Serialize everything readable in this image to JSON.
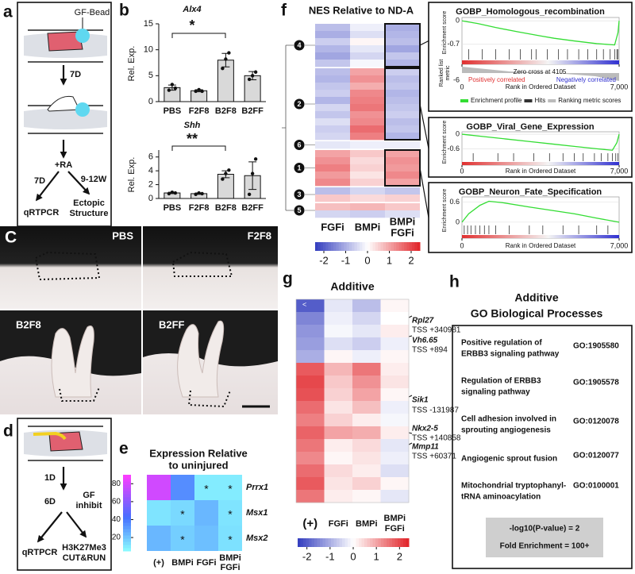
{
  "panel_a": {
    "label": "a",
    "bead": "GF-Bead",
    "first_interval": "7D",
    "treatment": "+RA",
    "left_interval": "7D",
    "right_interval": "9-12W",
    "left_readout": "qRTPCR",
    "right_readout_lines": [
      "Ectopic",
      "Structure"
    ]
  },
  "panel_b": {
    "label": "b",
    "charts": [
      {
        "type": "bar",
        "title": "Alx4",
        "y_label": "Rel. Exp.",
        "categories": [
          "PBS",
          "F2F8",
          "B2F8",
          "B2FF"
        ],
        "values": [
          2.7,
          2.1,
          8.0,
          5.0
        ],
        "errors": [
          0.5,
          0.2,
          1.3,
          0.8
        ],
        "points": [
          [
            2.2,
            3.3,
            2.6
          ],
          [
            2.0,
            2.3,
            2.0
          ],
          [
            6.4,
            8.2,
            9.4
          ],
          [
            4.3,
            5.0,
            5.7
          ]
        ],
        "color": "#d9d9d9",
        "ylim": [
          0,
          15
        ],
        "yticks": [
          0,
          5,
          10,
          15
        ],
        "significance": "*"
      },
      {
        "type": "bar",
        "title": "Shh",
        "y_label": "Rel. Exp.",
        "categories": [
          "PBS",
          "F2F8",
          "B2F8",
          "B2FF"
        ],
        "values": [
          0.8,
          0.7,
          3.5,
          3.3
        ],
        "errors": [
          0.1,
          0.1,
          0.5,
          2.0
        ],
        "points": [
          [
            0.7,
            0.9,
            0.8
          ],
          [
            0.6,
            0.8,
            0.7
          ],
          [
            2.8,
            3.6,
            4.1
          ],
          [
            0.6,
            3.6,
            5.7
          ]
        ],
        "color": "#d9d9d9",
        "ylim": [
          0,
          7
        ],
        "yticks": [
          0,
          2,
          4,
          6
        ],
        "significance": "**"
      }
    ]
  },
  "panel_c": {
    "label": "C",
    "photos": [
      "PBS",
      "F2F8",
      "B2F8",
      "B2FF"
    ]
  },
  "panel_d": {
    "label": "d",
    "first_interval": "1D",
    "second_interval": "6D",
    "treatment_lines": [
      "GF",
      "inhibit"
    ],
    "left_readout": "qRTPCR",
    "right_readout_lines": [
      "H3K27Me3",
      "CUT&RUN"
    ]
  },
  "panel_e": {
    "label": "e",
    "title_lines": [
      "Expression Relative",
      "to uninjured"
    ],
    "rows": [
      "Prrx1",
      "Msx1",
      "Msx2"
    ],
    "columns": [
      [
        "(+)"
      ],
      [
        "BMPi"
      ],
      [
        "FGFi"
      ],
      [
        "BMPi",
        "FGFi"
      ]
    ],
    "values": [
      [
        78,
        35,
        10,
        10
      ],
      [
        12,
        15,
        24,
        12
      ],
      [
        24,
        18,
        22,
        13
      ]
    ],
    "colorbar_lim": [
      5,
      90
    ],
    "colorbar_ticks": [
      20,
      40,
      60,
      80
    ],
    "significance_mark": "*",
    "significant_cells": [
      [
        0,
        2
      ],
      [
        0,
        3
      ],
      [
        1,
        1
      ],
      [
        1,
        3
      ],
      [
        2,
        1
      ],
      [
        2,
        3
      ]
    ]
  },
  "panel_f": {
    "label": "f",
    "title": "NES Relative to ND-A",
    "columns": [
      [
        "FGFi"
      ],
      [
        "BMPi"
      ],
      [
        "BMPi",
        "FGFi"
      ]
    ],
    "clusters": [
      {
        "label": "4",
        "boxed": true,
        "rows": [
          [
            -0.8,
            -0.2,
            -1.0
          ],
          [
            -1.0,
            -0.4,
            -0.9
          ],
          [
            -0.6,
            0.1,
            -0.8
          ],
          [
            -0.9,
            -0.3,
            -1.1
          ],
          [
            -1.1,
            -0.5,
            -0.7
          ],
          [
            -0.7,
            -0.1,
            -0.9
          ]
        ]
      },
      {
        "label": "2",
        "boxed": true,
        "rows": [
          [
            -0.8,
            1.0,
            -0.6
          ],
          [
            -0.9,
            1.2,
            -0.8
          ],
          [
            -0.7,
            0.9,
            -0.7
          ],
          [
            -0.6,
            1.3,
            -0.9
          ],
          [
            -0.9,
            1.4,
            -0.8
          ],
          [
            -0.5,
            1.5,
            -0.7
          ],
          [
            -0.7,
            1.2,
            -0.6
          ],
          [
            -0.4,
            1.3,
            -0.8
          ],
          [
            -0.6,
            1.6,
            -0.7
          ],
          [
            -0.5,
            1.4,
            -0.9
          ]
        ]
      },
      {
        "label": "6",
        "boxed": false,
        "rows": [
          [
            -0.3,
            -0.2,
            -0.2
          ]
        ]
      },
      {
        "label": "1",
        "boxed": true,
        "rows": [
          [
            1.0,
            0.6,
            1.0
          ],
          [
            1.2,
            0.4,
            1.2
          ],
          [
            1.4,
            0.5,
            1.1
          ],
          [
            1.1,
            0.3,
            1.3
          ],
          [
            1.3,
            0.5,
            1.0
          ]
        ]
      },
      {
        "label": "3",
        "boxed": false,
        "rows": [
          [
            -0.8,
            -0.5,
            -0.7
          ],
          [
            0.6,
            0.4,
            0.5
          ]
        ]
      },
      {
        "label": "5",
        "boxed": false,
        "rows": [
          [
            0.7,
            0.8,
            0.6
          ],
          [
            -0.5,
            -0.6,
            -0.4
          ]
        ]
      }
    ],
    "colorbar_lim": [
      -2.4,
      2.4
    ],
    "colorbar_ticks": [
      -2,
      -1,
      0,
      1,
      2
    ]
  },
  "gsea": [
    {
      "title": "GOBP_Homologous_recombination",
      "y_label": "Enrichment score",
      "x_label": "Rank in Ordered Dataset",
      "xlim": [
        0,
        7000
      ],
      "xticks": [
        0,
        {
          "value": 7000,
          "label": "7,000"
        }
      ],
      "ylim": [
        -0.8,
        0.1
      ],
      "yticks": [
        0,
        -0.7
      ],
      "color": "#33dd33",
      "x": [
        0,
        700,
        1500,
        2500,
        3500,
        4105,
        5000,
        6000,
        6800,
        6950,
        7000
      ],
      "values": [
        0,
        -0.08,
        -0.2,
        -0.33,
        -0.45,
        -0.52,
        -0.6,
        -0.68,
        -0.72,
        -0.35,
        0
      ],
      "hits": [
        300,
        900,
        1500,
        2100,
        2600,
        3100,
        3300,
        3800,
        4300,
        4700,
        5200,
        5600,
        6000,
        6300,
        6600,
        6800,
        6900,
        6950
      ],
      "metric_label_lines": [
        "Ranked list",
        "metric"
      ],
      "metric_yticks": [
        -6
      ],
      "zero_cross": "Zero cross at 4105",
      "positive_label": "Positively correlated",
      "negative_label": "Negatively correlated",
      "legend": [
        {
          "name": "Enrichment profile",
          "color": "#33dd33"
        },
        {
          "name": "Hits",
          "color": "#333333"
        },
        {
          "name": "Ranking metric scores",
          "color": "#bbbbbb"
        }
      ]
    },
    {
      "title": "GOBP_Viral_Gene_Expression",
      "y_label": "Enrichment score",
      "x_label": "Rank in Ordered Dataset",
      "xlim": [
        0,
        7000
      ],
      "xticks": [
        0,
        {
          "value": 7000,
          "label": "7,000"
        }
      ],
      "ylim": [
        -0.75,
        0.1
      ],
      "yticks": [
        0,
        -0.6
      ],
      "color": "#33dd33",
      "x": [
        0,
        1000,
        2000,
        3000,
        4000,
        5000,
        6000,
        6700,
        6900,
        7000
      ],
      "values": [
        0,
        -0.1,
        -0.2,
        -0.3,
        -0.4,
        -0.5,
        -0.6,
        -0.66,
        -0.35,
        0
      ],
      "hits": [
        500,
        1600,
        2300,
        3200,
        3900,
        4500,
        5000,
        5400,
        5900,
        6200,
        6500,
        6700,
        6850,
        6950
      ]
    },
    {
      "title": "GOBP_Neuron_Fate_Specification",
      "y_label": "Enrichment score",
      "x_label": "Rank in Ordered Dataset",
      "xlim": [
        0,
        7000
      ],
      "xticks": [
        0,
        {
          "value": 7000,
          "label": "7,000"
        }
      ],
      "ylim": [
        -0.05,
        0.75
      ],
      "yticks": [
        0.6,
        0
      ],
      "color": "#33dd33",
      "x": [
        0,
        300,
        800,
        1200,
        1800,
        3000,
        4000,
        5000,
        6000,
        7000
      ],
      "values": [
        0,
        0.25,
        0.5,
        0.62,
        0.58,
        0.45,
        0.35,
        0.25,
        0.12,
        0
      ],
      "hits": [
        100,
        250,
        400,
        600,
        800,
        1000,
        1200,
        1500,
        2100,
        3000,
        3600,
        4500,
        5200,
        6000,
        6500
      ]
    }
  ],
  "panel_g": {
    "label": "g",
    "title": "Additive",
    "columns": [
      [
        "(+)"
      ],
      [
        "FGFi"
      ],
      [
        "BMPi"
      ],
      [
        "BMPi",
        "FGFi"
      ]
    ],
    "corner_mark": "<",
    "values": [
      [
        -2,
        -0.3,
        -0.8,
        0.1
      ],
      [
        -1.5,
        -0.2,
        -0.5,
        0
      ],
      [
        -1.3,
        -0.1,
        -0.3,
        0.2
      ],
      [
        -1.2,
        -0.4,
        -0.6,
        -0.2
      ],
      [
        -1,
        0.1,
        -0.2,
        0.1
      ],
      [
        1.8,
        0.8,
        1.5,
        0.2
      ],
      [
        2,
        0.6,
        1.2,
        0.3
      ],
      [
        1.9,
        0.5,
        1.0,
        0.1
      ],
      [
        1.6,
        0.3,
        0.7,
        -0.2
      ],
      [
        1.4,
        0.5,
        0.2,
        -0.1
      ],
      [
        1.7,
        1.0,
        0.9,
        0.2
      ],
      [
        1.5,
        0.2,
        0.4,
        -0.3
      ],
      [
        1.3,
        0.1,
        0.3,
        -0.2
      ],
      [
        1.6,
        0.4,
        0.2,
        -0.4
      ],
      [
        1.8,
        0.3,
        0.5,
        0.1
      ],
      [
        1.5,
        0.2,
        0.1,
        -0.3
      ]
    ],
    "genes": [
      {
        "name": "Rpl27",
        "tss": "TSS +340981"
      },
      {
        "name": "Vh6.65",
        "tss": "TSS +894"
      },
      {
        "name": "Sik1",
        "tss": "TSS -131987"
      },
      {
        "name": "Nkx2-5",
        "tss": "TSS +140858"
      },
      {
        "name": "Mmp11",
        "tss": "TSS +60371"
      }
    ],
    "colorbar_lim": [
      -2.4,
      2.4
    ],
    "colorbar_ticks": [
      -2,
      -1,
      0,
      1,
      2
    ]
  },
  "panel_h": {
    "label": "h",
    "title_lines": [
      "Additive",
      "GO Biological Processes"
    ],
    "terms": [
      {
        "name_lines": [
          "Positive regulation of",
          "ERBB3 signaling pathway"
        ],
        "id": "GO:1905580"
      },
      {
        "name_lines": [
          "Regulation of ERBB3",
          "signaling pathway"
        ],
        "id": "GO:1905578"
      },
      {
        "name_lines": [
          "Cell adhesion involved in",
          "sprouting angiogenesis"
        ],
        "id": "GO:0120078"
      },
      {
        "name_lines": [
          "Angiogenic sprout fusion"
        ],
        "id": "GO:0120077"
      },
      {
        "name_lines": [
          "Mitochondrial tryptophanyl-",
          "tRNA aminoacylation"
        ],
        "id": "GO:0100001"
      }
    ],
    "legend": [
      "-log10(P-value) = 2",
      "Fold Enrichment = 100+"
    ]
  }
}
